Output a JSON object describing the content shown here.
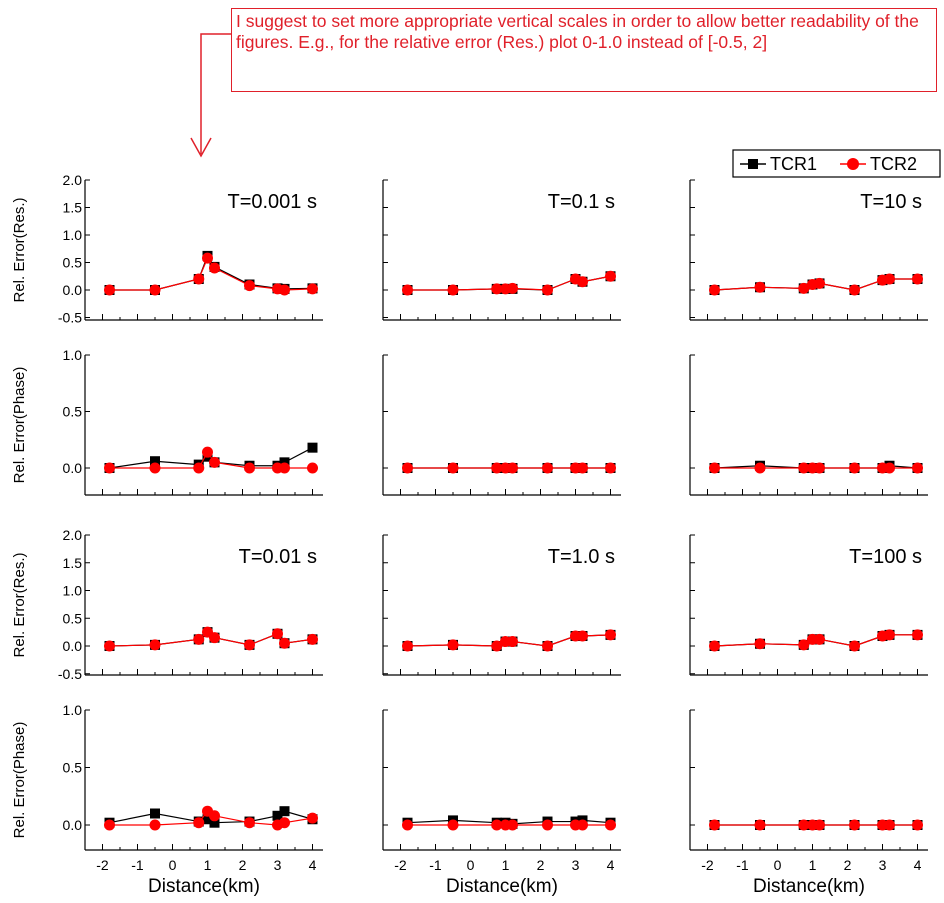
{
  "annotation": {
    "text": "I suggest to set more appropriate vertical scales in order to allow better readability of the figures. E.g., for the relative error (Res.) plot 0-1.0 instead of [-0.5, 2]",
    "color": "#e0202a"
  },
  "chart_data": {
    "type": "line",
    "legend": [
      {
        "name": "TCR1",
        "color": "#000000",
        "marker": "square"
      },
      {
        "name": "TCR2",
        "color": "#ff0000",
        "marker": "circle"
      }
    ],
    "legend_placement": "top-right",
    "xlabel": "Distance(km)",
    "x_ticks": [
      -2,
      -1,
      0,
      1,
      2,
      3,
      4
    ],
    "x": [
      -1.8,
      -0.5,
      0.75,
      1.0,
      1.2,
      2.2,
      3.0,
      3.2,
      4.0
    ],
    "grid": false,
    "row_labels": [
      "Rel. Error(Res.)",
      "Rel. Error(Phase)",
      "Rel. Error(Res.)",
      "Rel. Error(Phase)"
    ],
    "row_ylims": [
      [
        -0.5,
        2.0
      ],
      [
        -0.2,
        1.0
      ],
      [
        -0.5,
        2.0
      ],
      [
        -0.2,
        1.0
      ]
    ],
    "row_yticks": [
      [
        "2.0",
        "1.5",
        "1.0",
        "0.5",
        "0.0",
        "-0.5"
      ],
      [
        "1.0",
        "0.5",
        "0.0"
      ],
      [
        "2.0",
        "1.5",
        "1.0",
        "0.5",
        "0.0",
        "-0.5"
      ],
      [
        "1.0",
        "0.5",
        "0.0"
      ]
    ],
    "row_ytick_values": [
      [
        2.0,
        1.5,
        1.0,
        0.5,
        0.0,
        -0.5
      ],
      [
        1.0,
        0.5,
        0.0
      ],
      [
        2.0,
        1.5,
        1.0,
        0.5,
        0.0,
        -0.5
      ],
      [
        1.0,
        0.5,
        0.0
      ]
    ],
    "panels": [
      {
        "row": 0,
        "col": 0,
        "label": "T=0.001 s",
        "series": [
          {
            "name": "TCR1",
            "values": [
              0.0,
              0.0,
              0.2,
              0.62,
              0.42,
              0.1,
              0.03,
              0.02,
              0.03
            ]
          },
          {
            "name": "TCR2",
            "values": [
              0.0,
              0.0,
              0.2,
              0.58,
              0.4,
              0.08,
              0.02,
              0.0,
              0.02
            ]
          }
        ]
      },
      {
        "row": 0,
        "col": 1,
        "label": "T=0.1 s",
        "series": [
          {
            "name": "TCR1",
            "values": [
              0.0,
              0.0,
              0.02,
              0.02,
              0.02,
              0.0,
              0.2,
              0.15,
              0.25
            ]
          },
          {
            "name": "TCR2",
            "values": [
              0.0,
              0.0,
              0.02,
              0.02,
              0.03,
              0.0,
              0.2,
              0.15,
              0.25
            ]
          }
        ]
      },
      {
        "row": 0,
        "col": 2,
        "label": "T=10 s",
        "series": [
          {
            "name": "TCR1",
            "values": [
              0.0,
              0.05,
              0.03,
              0.1,
              0.12,
              0.0,
              0.18,
              0.2,
              0.2
            ]
          },
          {
            "name": "TCR2",
            "values": [
              0.0,
              0.05,
              0.03,
              0.1,
              0.12,
              0.0,
              0.18,
              0.2,
              0.2
            ]
          }
        ]
      },
      {
        "row": 1,
        "col": 0,
        "label": "",
        "series": [
          {
            "name": "TCR1",
            "values": [
              0.0,
              0.06,
              0.03,
              0.1,
              0.05,
              0.02,
              0.02,
              0.05,
              0.18
            ]
          },
          {
            "name": "TCR2",
            "values": [
              0.0,
              0.0,
              0.0,
              0.14,
              0.05,
              0.0,
              0.0,
              0.0,
              0.0
            ]
          }
        ]
      },
      {
        "row": 1,
        "col": 1,
        "label": "",
        "series": [
          {
            "name": "TCR1",
            "values": [
              0.0,
              0.0,
              0.0,
              0.0,
              0.0,
              0.0,
              0.0,
              0.0,
              0.0
            ]
          },
          {
            "name": "TCR2",
            "values": [
              0.0,
              0.0,
              0.0,
              0.0,
              0.0,
              0.0,
              0.0,
              0.0,
              0.0
            ]
          }
        ]
      },
      {
        "row": 1,
        "col": 2,
        "label": "",
        "series": [
          {
            "name": "TCR1",
            "values": [
              0.0,
              0.02,
              0.0,
              0.0,
              0.0,
              0.0,
              0.0,
              0.02,
              0.0
            ]
          },
          {
            "name": "TCR2",
            "values": [
              0.0,
              0.0,
              0.0,
              0.0,
              0.0,
              0.0,
              0.0,
              0.0,
              0.0
            ]
          }
        ]
      },
      {
        "row": 2,
        "col": 0,
        "label": "T=0.01 s",
        "series": [
          {
            "name": "TCR1",
            "values": [
              0.0,
              0.02,
              0.12,
              0.25,
              0.15,
              0.02,
              0.22,
              0.05,
              0.12
            ]
          },
          {
            "name": "TCR2",
            "values": [
              0.0,
              0.02,
              0.12,
              0.25,
              0.15,
              0.02,
              0.22,
              0.05,
              0.12
            ]
          }
        ]
      },
      {
        "row": 2,
        "col": 1,
        "label": "T=1.0 s",
        "series": [
          {
            "name": "TCR1",
            "values": [
              0.0,
              0.02,
              0.0,
              0.08,
              0.08,
              0.0,
              0.18,
              0.18,
              0.2
            ]
          },
          {
            "name": "TCR2",
            "values": [
              0.0,
              0.02,
              0.0,
              0.08,
              0.08,
              0.0,
              0.18,
              0.18,
              0.2
            ]
          }
        ]
      },
      {
        "row": 2,
        "col": 2,
        "label": "T=100 s",
        "series": [
          {
            "name": "TCR1",
            "values": [
              0.0,
              0.04,
              0.02,
              0.12,
              0.12,
              0.0,
              0.18,
              0.2,
              0.2
            ]
          },
          {
            "name": "TCR2",
            "values": [
              0.0,
              0.04,
              0.02,
              0.12,
              0.12,
              0.0,
              0.18,
              0.2,
              0.2
            ]
          }
        ]
      },
      {
        "row": 3,
        "col": 0,
        "label": "",
        "series": [
          {
            "name": "TCR1",
            "values": [
              0.02,
              0.1,
              0.03,
              0.05,
              0.02,
              0.03,
              0.08,
              0.12,
              0.05
            ]
          },
          {
            "name": "TCR2",
            "values": [
              0.0,
              0.0,
              0.02,
              0.12,
              0.08,
              0.02,
              0.0,
              0.02,
              0.06
            ]
          }
        ]
      },
      {
        "row": 3,
        "col": 1,
        "label": "",
        "series": [
          {
            "name": "TCR1",
            "values": [
              0.02,
              0.04,
              0.02,
              0.02,
              0.01,
              0.03,
              0.03,
              0.04,
              0.02
            ]
          },
          {
            "name": "TCR2",
            "values": [
              0.0,
              0.0,
              0.0,
              0.0,
              0.0,
              0.0,
              0.0,
              0.0,
              0.0
            ]
          }
        ]
      },
      {
        "row": 3,
        "col": 2,
        "label": "",
        "series": [
          {
            "name": "TCR1",
            "values": [
              0.0,
              0.0,
              0.0,
              0.0,
              0.0,
              0.0,
              0.0,
              0.0,
              0.0
            ]
          },
          {
            "name": "TCR2",
            "values": [
              0.0,
              0.0,
              0.0,
              0.0,
              0.0,
              0.0,
              0.0,
              0.0,
              0.0
            ]
          }
        ]
      }
    ]
  }
}
